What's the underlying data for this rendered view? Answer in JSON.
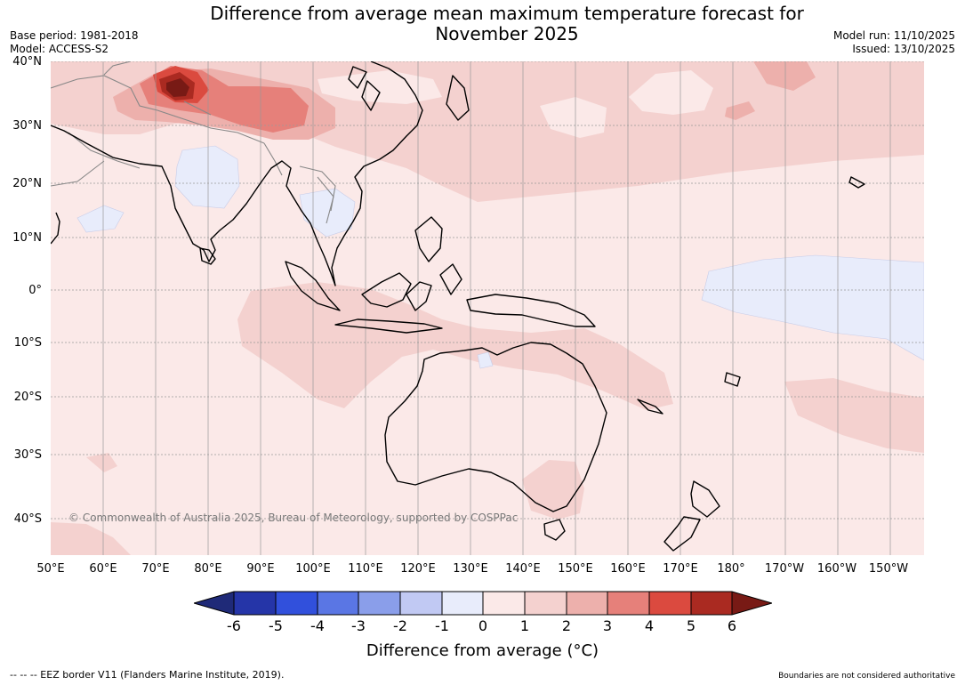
{
  "title_line1": "Difference from average mean maximum temperature forecast for",
  "title_line2": "November 2025",
  "base_period": "Base period: 1981-2018",
  "model": "Model: ACCESS-S2",
  "model_run": "Model run: 11/10/2025",
  "issued": "Issued: 13/10/2025",
  "copyright": "© Commonwealth of Australia 2025, Bureau of Meteorology, supported by COSPPac",
  "lat_labels": [
    "40°N",
    "30°N",
    "20°N",
    "10°N",
    "0°",
    "10°S",
    "20°S",
    "30°S",
    "40°S"
  ],
  "lon_labels": [
    "50°E",
    "60°E",
    "70°E",
    "80°E",
    "90°E",
    "100°E",
    "110°E",
    "120°E",
    "130°E",
    "140°E",
    "150°E",
    "160°E",
    "170°E",
    "180°",
    "170°W",
    "160°W",
    "150°W"
  ],
  "colorbar": {
    "ticks": [
      "-6",
      "-5",
      "-4",
      "-3",
      "-2",
      "-1",
      "0",
      "1",
      "2",
      "3",
      "4",
      "5",
      "6"
    ],
    "colors": {
      "below": "#1f2a78",
      "m6_m5": "#2535a8",
      "m5_m4": "#3150dc",
      "m4_m3": "#5a76e4",
      "m3_m2": "#8a9eea",
      "m2_m1": "#c1c9f3",
      "m1_0": "#e8ecfb",
      "0_1": "#fbe9e8",
      "1_2": "#f4d1cf",
      "2_3": "#edb0ac",
      "3_4": "#e6807a",
      "4_5": "#db4a3f",
      "5_6": "#aa2a21",
      "above": "#781a15"
    },
    "label": "Difference from average (°C)"
  },
  "footer_left": "--  --  -- EEZ border V11 (Flanders Marine Institute, 2019).",
  "footer_right": "Boundaries are not considered authoritative"
}
